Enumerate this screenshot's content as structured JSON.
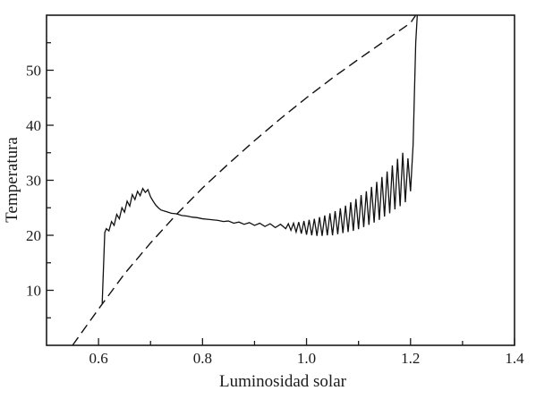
{
  "chart_data": {
    "type": "line",
    "title": "",
    "xlabel": "Luminosidad solar",
    "ylabel": "Temperatura",
    "xlim": [
      0.5,
      1.4
    ],
    "ylim": [
      0,
      60
    ],
    "grid": false,
    "x_ticks": [
      0.6,
      0.8,
      1.0,
      1.2,
      1.4
    ],
    "x_tick_labels": [
      "0.6",
      "0.8",
      "1.0",
      "1.2",
      "1.4"
    ],
    "y_ticks": [
      10,
      20,
      30,
      40,
      50
    ],
    "y_tick_labels": [
      "10",
      "20",
      "30",
      "40",
      "50"
    ],
    "series": [
      {
        "style": "solid",
        "x": [
          0.607,
          0.612,
          0.615,
          0.62,
          0.625,
          0.63,
          0.635,
          0.64,
          0.645,
          0.65,
          0.655,
          0.66,
          0.665,
          0.67,
          0.675,
          0.68,
          0.685,
          0.69,
          0.695,
          0.7,
          0.705,
          0.71,
          0.715,
          0.72,
          0.73,
          0.74,
          0.75,
          0.76,
          0.77,
          0.78,
          0.79,
          0.8,
          0.81,
          0.82,
          0.83,
          0.84,
          0.85,
          0.86,
          0.87,
          0.88,
          0.89,
          0.9,
          0.91,
          0.92,
          0.93,
          0.94,
          0.95,
          0.96,
          0.965,
          0.97,
          0.975,
          0.98,
          0.985,
          0.99,
          0.995,
          1.0,
          1.005,
          1.01,
          1.015,
          1.02,
          1.025,
          1.03,
          1.035,
          1.04,
          1.045,
          1.05,
          1.055,
          1.06,
          1.065,
          1.07,
          1.075,
          1.08,
          1.085,
          1.09,
          1.095,
          1.1,
          1.105,
          1.11,
          1.115,
          1.12,
          1.125,
          1.13,
          1.135,
          1.14,
          1.145,
          1.15,
          1.155,
          1.16,
          1.165,
          1.17,
          1.175,
          1.18,
          1.185,
          1.19,
          1.195,
          1.2,
          1.205,
          1.21,
          1.213
        ],
        "y": [
          7.5,
          20.5,
          21.2,
          20.8,
          22.5,
          21.8,
          23.8,
          23.0,
          25.0,
          24.2,
          26.2,
          25.3,
          27.4,
          26.5,
          28.0,
          27.2,
          28.5,
          27.8,
          28.3,
          27.0,
          26.2,
          25.5,
          25.0,
          24.6,
          24.3,
          24.0,
          23.9,
          23.6,
          23.5,
          23.3,
          23.2,
          23.0,
          22.9,
          22.8,
          22.7,
          22.5,
          22.6,
          22.2,
          22.4,
          22.0,
          22.3,
          21.8,
          22.2,
          21.6,
          22.1,
          21.4,
          22.0,
          21.2,
          22.1,
          20.9,
          22.2,
          20.6,
          22.4,
          20.3,
          22.6,
          20.1,
          22.8,
          20.0,
          23.0,
          19.9,
          23.3,
          19.9,
          23.6,
          20.0,
          24.0,
          20.0,
          24.4,
          20.2,
          24.9,
          20.4,
          25.4,
          20.6,
          26.0,
          20.8,
          26.6,
          21.1,
          27.3,
          21.5,
          28.0,
          21.9,
          28.8,
          22.3,
          29.7,
          22.8,
          30.6,
          23.4,
          31.6,
          24.0,
          32.7,
          24.7,
          33.9,
          25.3,
          35.0,
          26.0,
          34.0,
          28.0,
          36.5,
          55.0,
          60.0
        ]
      },
      {
        "style": "dashed",
        "x": [
          0.55,
          0.6,
          0.65,
          0.7,
          0.75,
          0.8,
          0.85,
          0.9,
          0.95,
          1.0,
          1.05,
          1.1,
          1.15,
          1.2,
          1.21
        ],
        "y": [
          0.0,
          6.6,
          13.0,
          18.6,
          23.8,
          28.6,
          33.0,
          37.2,
          41.2,
          45.0,
          48.6,
          52.0,
          55.3,
          58.6,
          60.0
        ]
      }
    ]
  }
}
